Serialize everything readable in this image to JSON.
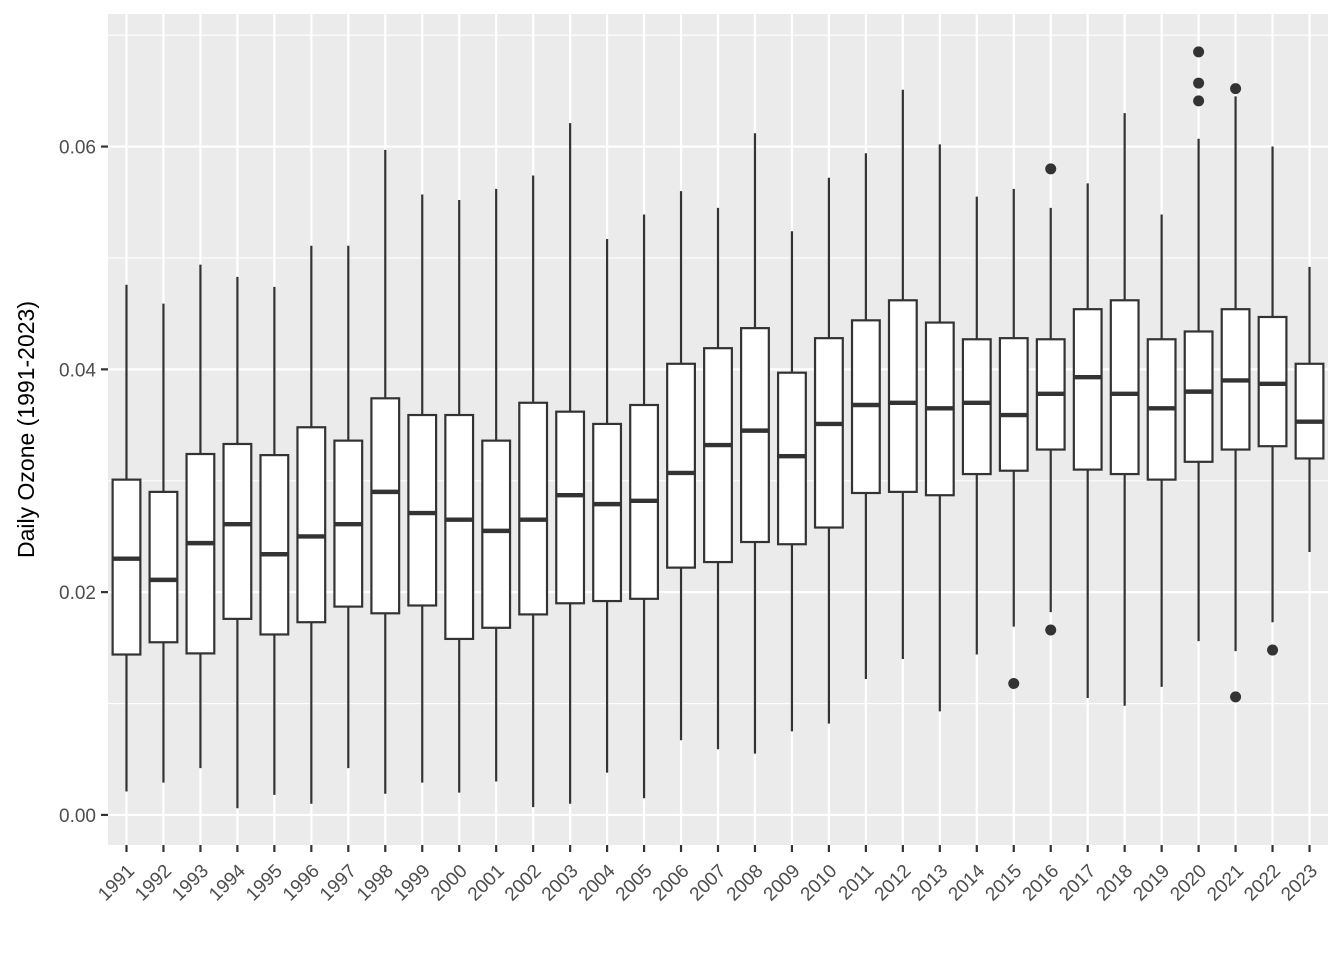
{
  "chart_data": {
    "type": "boxplot",
    "xlabel": "",
    "ylabel": "Daily Ozone (1991-2023)",
    "ylim": [
      -0.0027,
      0.0719
    ],
    "y_ticks": [
      0.0,
      0.02,
      0.04,
      0.06
    ],
    "y_tick_labels": [
      "0.00",
      "0.02",
      "0.04",
      "0.06"
    ],
    "grid": true,
    "categories": [
      "1991",
      "1992",
      "1993",
      "1994",
      "1995",
      "1996",
      "1997",
      "1998",
      "1999",
      "2000",
      "2001",
      "2002",
      "2003",
      "2004",
      "2005",
      "2006",
      "2007",
      "2008",
      "2009",
      "2010",
      "2011",
      "2012",
      "2013",
      "2014",
      "2015",
      "2016",
      "2017",
      "2018",
      "2019",
      "2020",
      "2021",
      "2022",
      "2023"
    ],
    "boxes": [
      {
        "lower_whisker": 0.0021,
        "q1": 0.0144,
        "median": 0.023,
        "q3": 0.0301,
        "upper_whisker": 0.0476,
        "outliers": []
      },
      {
        "lower_whisker": 0.0029,
        "q1": 0.0155,
        "median": 0.0211,
        "q3": 0.029,
        "upper_whisker": 0.0459,
        "outliers": []
      },
      {
        "lower_whisker": 0.0042,
        "q1": 0.0145,
        "median": 0.0244,
        "q3": 0.0324,
        "upper_whisker": 0.0494,
        "outliers": []
      },
      {
        "lower_whisker": 0.0006,
        "q1": 0.0176,
        "median": 0.0261,
        "q3": 0.0333,
        "upper_whisker": 0.0483,
        "outliers": []
      },
      {
        "lower_whisker": 0.0018,
        "q1": 0.0162,
        "median": 0.0234,
        "q3": 0.0323,
        "upper_whisker": 0.0474,
        "outliers": []
      },
      {
        "lower_whisker": 0.001,
        "q1": 0.0173,
        "median": 0.025,
        "q3": 0.0348,
        "upper_whisker": 0.0511,
        "outliers": []
      },
      {
        "lower_whisker": 0.0042,
        "q1": 0.0187,
        "median": 0.0261,
        "q3": 0.0336,
        "upper_whisker": 0.0511,
        "outliers": []
      },
      {
        "lower_whisker": 0.0019,
        "q1": 0.0181,
        "median": 0.029,
        "q3": 0.0374,
        "upper_whisker": 0.0597,
        "outliers": []
      },
      {
        "lower_whisker": 0.0029,
        "q1": 0.0188,
        "median": 0.0271,
        "q3": 0.0359,
        "upper_whisker": 0.0557,
        "outliers": []
      },
      {
        "lower_whisker": 0.002,
        "q1": 0.0158,
        "median": 0.0265,
        "q3": 0.0359,
        "upper_whisker": 0.0552,
        "outliers": []
      },
      {
        "lower_whisker": 0.003,
        "q1": 0.0168,
        "median": 0.0255,
        "q3": 0.0336,
        "upper_whisker": 0.0562,
        "outliers": []
      },
      {
        "lower_whisker": 0.0007,
        "q1": 0.018,
        "median": 0.0265,
        "q3": 0.037,
        "upper_whisker": 0.0574,
        "outliers": []
      },
      {
        "lower_whisker": 0.001,
        "q1": 0.019,
        "median": 0.0287,
        "q3": 0.0362,
        "upper_whisker": 0.0621,
        "outliers": []
      },
      {
        "lower_whisker": 0.0038,
        "q1": 0.0192,
        "median": 0.0279,
        "q3": 0.0351,
        "upper_whisker": 0.0517,
        "outliers": []
      },
      {
        "lower_whisker": 0.0015,
        "q1": 0.0194,
        "median": 0.0282,
        "q3": 0.0368,
        "upper_whisker": 0.0539,
        "outliers": []
      },
      {
        "lower_whisker": 0.0067,
        "q1": 0.0222,
        "median": 0.0307,
        "q3": 0.0405,
        "upper_whisker": 0.056,
        "outliers": []
      },
      {
        "lower_whisker": 0.0059,
        "q1": 0.0227,
        "median": 0.0332,
        "q3": 0.0419,
        "upper_whisker": 0.0545,
        "outliers": []
      },
      {
        "lower_whisker": 0.0055,
        "q1": 0.0245,
        "median": 0.0345,
        "q3": 0.0437,
        "upper_whisker": 0.0612,
        "outliers": []
      },
      {
        "lower_whisker": 0.0075,
        "q1": 0.0243,
        "median": 0.0322,
        "q3": 0.0397,
        "upper_whisker": 0.0524,
        "outliers": []
      },
      {
        "lower_whisker": 0.0082,
        "q1": 0.0258,
        "median": 0.0351,
        "q3": 0.0428,
        "upper_whisker": 0.0572,
        "outliers": []
      },
      {
        "lower_whisker": 0.0122,
        "q1": 0.0289,
        "median": 0.0368,
        "q3": 0.0444,
        "upper_whisker": 0.0594,
        "outliers": []
      },
      {
        "lower_whisker": 0.014,
        "q1": 0.029,
        "median": 0.037,
        "q3": 0.0462,
        "upper_whisker": 0.0651,
        "outliers": []
      },
      {
        "lower_whisker": 0.0093,
        "q1": 0.0287,
        "median": 0.0365,
        "q3": 0.0442,
        "upper_whisker": 0.0602,
        "outliers": []
      },
      {
        "lower_whisker": 0.0144,
        "q1": 0.0306,
        "median": 0.037,
        "q3": 0.0427,
        "upper_whisker": 0.0555,
        "outliers": []
      },
      {
        "lower_whisker": 0.0169,
        "q1": 0.0309,
        "median": 0.0359,
        "q3": 0.0428,
        "upper_whisker": 0.0562,
        "outliers": [
          0.0118
        ]
      },
      {
        "lower_whisker": 0.0182,
        "q1": 0.0328,
        "median": 0.0378,
        "q3": 0.0427,
        "upper_whisker": 0.0545,
        "outliers": [
          0.058,
          0.0166
        ]
      },
      {
        "lower_whisker": 0.0105,
        "q1": 0.031,
        "median": 0.0393,
        "q3": 0.0454,
        "upper_whisker": 0.0567,
        "outliers": []
      },
      {
        "lower_whisker": 0.0098,
        "q1": 0.0306,
        "median": 0.0378,
        "q3": 0.0462,
        "upper_whisker": 0.063,
        "outliers": []
      },
      {
        "lower_whisker": 0.0115,
        "q1": 0.0301,
        "median": 0.0365,
        "q3": 0.0427,
        "upper_whisker": 0.0539,
        "outliers": []
      },
      {
        "lower_whisker": 0.0156,
        "q1": 0.0317,
        "median": 0.038,
        "q3": 0.0434,
        "upper_whisker": 0.0607,
        "outliers": [
          0.0685,
          0.0657,
          0.0641
        ]
      },
      {
        "lower_whisker": 0.0147,
        "q1": 0.0328,
        "median": 0.039,
        "q3": 0.0454,
        "upper_whisker": 0.0645,
        "outliers": [
          0.0652,
          0.0106
        ]
      },
      {
        "lower_whisker": 0.0173,
        "q1": 0.0331,
        "median": 0.0387,
        "q3": 0.0447,
        "upper_whisker": 0.06,
        "outliers": [
          0.0148
        ]
      },
      {
        "lower_whisker": 0.0236,
        "q1": 0.032,
        "median": 0.0353,
        "q3": 0.0405,
        "upper_whisker": 0.0492,
        "outliers": []
      }
    ],
    "colors": {
      "panel_background": "#ebebeb",
      "grid_major": "#ffffff",
      "box_fill": "#ffffff",
      "box_stroke": "#333333",
      "outlier": "#333333"
    }
  }
}
